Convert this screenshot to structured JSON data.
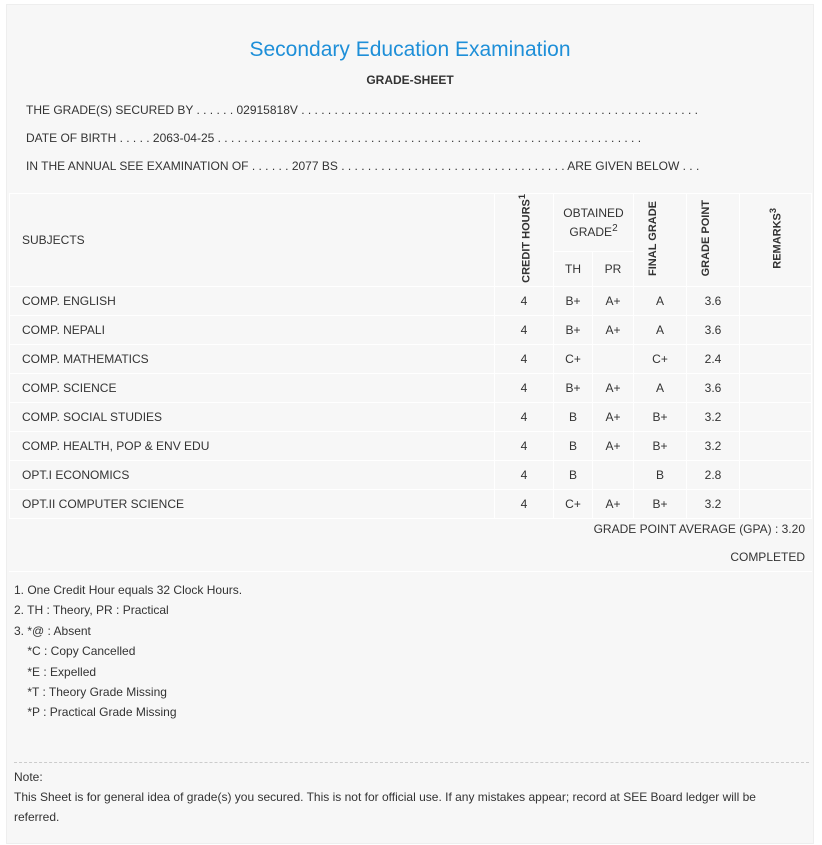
{
  "header": {
    "title": "Secondary Education Examination",
    "subtitle": "GRADE-SHEET"
  },
  "info": {
    "secured_by": "THE GRADE(S) SECURED BY . . . . . . 02915818V . . . . . . . . . . . . . . . . . . . . . . . . . . . . . . . . . . . . . . . . . . . . . . . . . . . . . . . . . . . .",
    "dob": "DATE OF BIRTH . . . . . 2063-04-25 . . . . . . . . . . . . . . . . . . . . . . . . . . . . . . . . . . . . . . . . . . . . . . . . . . . . . . . . . . . . . . . .",
    "exam": "IN THE ANNUAL SEE EXAMINATION OF . . . . . . 2077 BS . . . . . . . . . . . . . . . . . . . . . . . . . . . . . . . . . . ARE GIVEN BELOW . . ."
  },
  "table": {
    "headers": {
      "subjects": "SUBJECTS",
      "credit": "CREDIT HOURS",
      "credit_sup": "1",
      "obtained": "OBTAINED GRADE",
      "obtained_sup": "2",
      "th": "TH",
      "pr": "PR",
      "final": "FINAL GRADE",
      "gp": "GRADE POINT",
      "remarks": "REMARKS",
      "remarks_sup": "3"
    },
    "rows": [
      {
        "subject": "COMP. ENGLISH",
        "credit": "4",
        "th": "B+",
        "pr": "A+",
        "final": "A",
        "gp": "3.6",
        "remarks": ""
      },
      {
        "subject": "COMP. NEPALI",
        "credit": "4",
        "th": "B+",
        "pr": "A+",
        "final": "A",
        "gp": "3.6",
        "remarks": ""
      },
      {
        "subject": "COMP. MATHEMATICS",
        "credit": "4",
        "th": "C+",
        "pr": "",
        "final": "C+",
        "gp": "2.4",
        "remarks": ""
      },
      {
        "subject": "COMP. SCIENCE",
        "credit": "4",
        "th": "B+",
        "pr": "A+",
        "final": "A",
        "gp": "3.6",
        "remarks": ""
      },
      {
        "subject": "COMP. SOCIAL STUDIES",
        "credit": "4",
        "th": "B",
        "pr": "A+",
        "final": "B+",
        "gp": "3.2",
        "remarks": ""
      },
      {
        "subject": "COMP. HEALTH, POP & ENV EDU",
        "credit": "4",
        "th": "B",
        "pr": "A+",
        "final": "B+",
        "gp": "3.2",
        "remarks": ""
      },
      {
        "subject": "OPT.I ECONOMICS",
        "credit": "4",
        "th": "B",
        "pr": "",
        "final": "B",
        "gp": "2.8",
        "remarks": ""
      },
      {
        "subject": "OPT.II COMPUTER SCIENCE",
        "credit": "4",
        "th": "C+",
        "pr": "A+",
        "final": "B+",
        "gp": "3.2",
        "remarks": ""
      }
    ]
  },
  "summary": {
    "gpa": "GRADE POINT AVERAGE (GPA) : 3.20",
    "status": "COMPLETED"
  },
  "footnotes": [
    "1. One Credit Hour equals 32 Clock Hours.",
    "2. TH : Theory, PR : Practical",
    "3. *@ : Absent",
    "    *C : Copy Cancelled",
    "    *E : Expelled",
    "    *T : Theory Grade Missing",
    "    *P : Practical Grade Missing"
  ],
  "note": {
    "label": "Note:",
    "text": "This Sheet is for general idea of grade(s) you secured. This is not for official use. If any mistakes appear; record at SEE Board ledger will be referred."
  },
  "colors": {
    "title": "#1e8fd8",
    "background": "#f7f7f7"
  }
}
